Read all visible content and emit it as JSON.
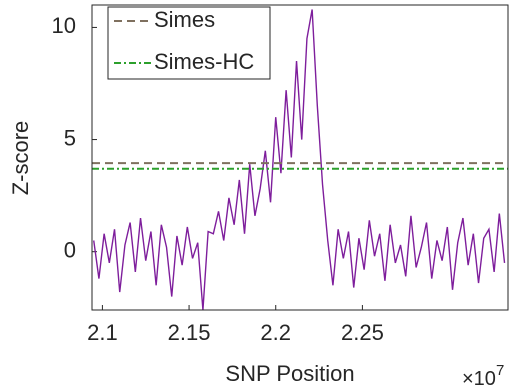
{
  "chart_data": {
    "type": "line",
    "xlabel": "SNP Position",
    "ylabel": "Z-score",
    "x_exponent": {
      "base": "×10",
      "power": "7"
    },
    "x": [
      2.095,
      2.098,
      2.101,
      2.104,
      2.107,
      2.11,
      2.113,
      2.116,
      2.119,
      2.122,
      2.125,
      2.128,
      2.131,
      2.134,
      2.137,
      2.14,
      2.143,
      2.146,
      2.149,
      2.152,
      2.155,
      2.158,
      2.161,
      2.164,
      2.167,
      2.17,
      2.173,
      2.176,
      2.179,
      2.182,
      2.185,
      2.188,
      2.191,
      2.194,
      2.197,
      2.2,
      2.203,
      2.206,
      2.209,
      2.212,
      2.215,
      2.218,
      2.221,
      2.224,
      2.227,
      2.23,
      2.233,
      2.236,
      2.239,
      2.242,
      2.245,
      2.248,
      2.251,
      2.254,
      2.257,
      2.26,
      2.263,
      2.266,
      2.269,
      2.272,
      2.275,
      2.278,
      2.281,
      2.284,
      2.287,
      2.29,
      2.293,
      2.296,
      2.299,
      2.302,
      2.305,
      2.308,
      2.311,
      2.314,
      2.317,
      2.32,
      2.323,
      2.326,
      2.329,
      2.332
    ],
    "values": [
      0.5,
      -1.2,
      0.8,
      -0.5,
      1.0,
      -1.8,
      0.3,
      1.3,
      -0.9,
      1.5,
      -0.4,
      0.9,
      -1.5,
      1.2,
      0.2,
      -2.0,
      0.7,
      -0.6,
      1.1,
      -0.3,
      0.4,
      -2.6,
      0.9,
      0.8,
      1.8,
      0.5,
      2.4,
      1.2,
      3.2,
      0.8,
      3.9,
      1.6,
      2.8,
      4.5,
      2.2,
      6.0,
      3.5,
      7.2,
      4.2,
      8.5,
      5.0,
      9.5,
      10.8,
      6.5,
      3.0,
      0.5,
      -1.5,
      1.0,
      -0.3,
      0.9,
      -1.6,
      0.6,
      -0.8,
      1.4,
      -0.2,
      0.8,
      -1.3,
      1.2,
      -0.5,
      0.3,
      -1.1,
      1.6,
      -0.7,
      0.2,
      1.3,
      -1.2,
      0.5,
      -0.4,
      1.1,
      -1.7,
      0.4,
      1.5,
      -0.6,
      0.8,
      -1.4,
      0.6,
      1.0,
      -0.9,
      1.7,
      -0.5
    ],
    "color": "#7e1e9c",
    "thresholds": [
      {
        "name": "Simes",
        "value": 3.95,
        "color": "#7f705f",
        "dash": "8 5"
      },
      {
        "name": "Simes-HC",
        "value": 3.7,
        "color": "#2ca02c",
        "dash": "7 3 2 3"
      }
    ],
    "xlim": [
      2.094,
      2.334
    ],
    "ylim": [
      -2.6,
      11
    ],
    "xticks": [
      2.1,
      2.15,
      2.2,
      2.25
    ],
    "yticks": [
      0,
      5,
      10
    ],
    "legend": "upper-left"
  }
}
